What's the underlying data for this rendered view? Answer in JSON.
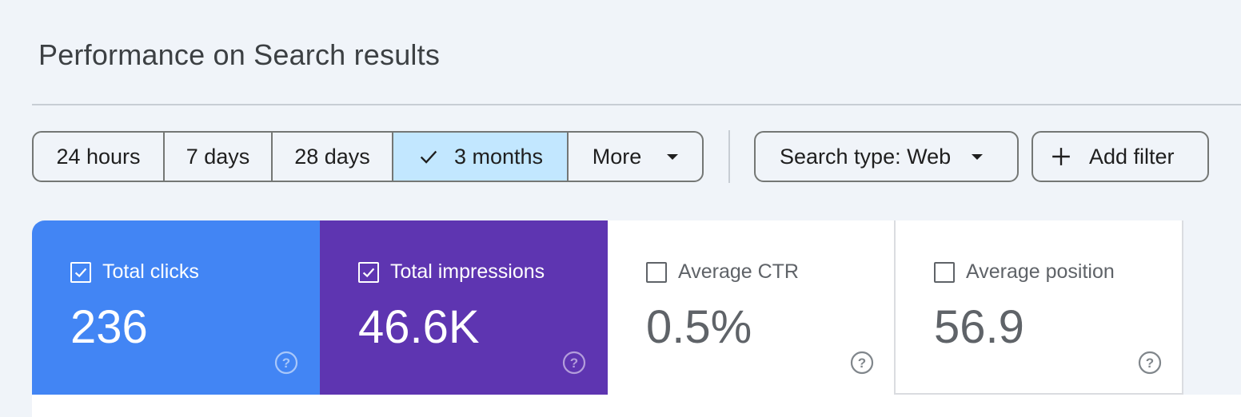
{
  "page": {
    "title": "Performance on Search results"
  },
  "date_range": {
    "options": [
      "24 hours",
      "7 days",
      "28 days",
      "3 months"
    ],
    "selected": "3 months",
    "more_label": "More"
  },
  "filters": {
    "search_type_label": "Search type: Web",
    "add_filter_label": "Add filter"
  },
  "metrics": [
    {
      "label": "Total clicks",
      "value": "236",
      "checked": true,
      "color": "#4285f4"
    },
    {
      "label": "Total impressions",
      "value": "46.6K",
      "checked": true,
      "color": "#5e35b1"
    },
    {
      "label": "Average CTR",
      "value": "0.5%",
      "checked": false,
      "color": "#ffffff"
    },
    {
      "label": "Average position",
      "value": "56.9",
      "checked": false,
      "color": "#ffffff"
    }
  ],
  "colors": {
    "accent_selected": "#c2e7ff",
    "background": "#f0f4f9"
  }
}
